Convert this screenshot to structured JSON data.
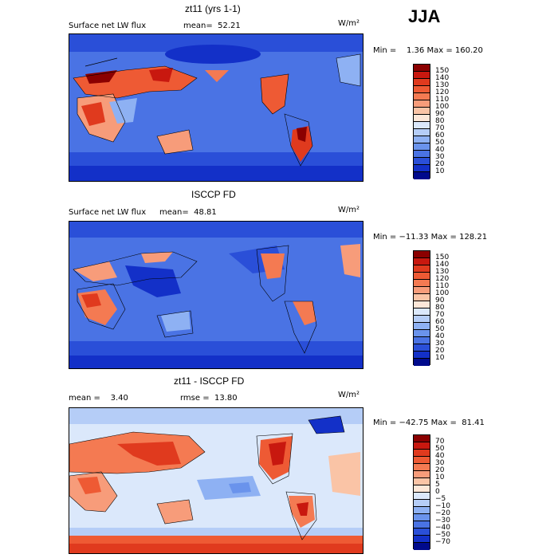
{
  "season": "JJA",
  "units": "W/m²",
  "panels": [
    {
      "title": "zt11 (yrs 1-1)",
      "left_label": "Surface net LW flux",
      "stat_label": "mean=  52.21",
      "minmax": "Min =    1.36 Max = 160.20",
      "levels": [
        "150",
        "140",
        "130",
        "120",
        "110",
        "100",
        "90",
        "80",
        "70",
        "60",
        "50",
        "40",
        "30",
        "20",
        "10"
      ],
      "colors": [
        "#8b0000",
        "#c8180f",
        "#e03a1e",
        "#ee5a34",
        "#f47a52",
        "#f79c7a",
        "#fac4a6",
        "#fde7d8",
        "#dbe8fb",
        "#b5cdf7",
        "#8eb1f3",
        "#6a93ec",
        "#4a73e4",
        "#2a4fd8",
        "#1330c8",
        "#000a8c"
      ]
    },
    {
      "title": "ISCCP FD",
      "left_label": "Surface net LW flux",
      "stat_label": "mean=  48.81",
      "minmax": "Min = −11.33 Max = 128.21",
      "levels": [
        "150",
        "140",
        "130",
        "120",
        "110",
        "100",
        "90",
        "80",
        "70",
        "60",
        "50",
        "40",
        "30",
        "20",
        "10"
      ],
      "colors": [
        "#8b0000",
        "#c8180f",
        "#e03a1e",
        "#ee5a34",
        "#f47a52",
        "#f79c7a",
        "#fac4a6",
        "#fde7d8",
        "#dbe8fb",
        "#b5cdf7",
        "#8eb1f3",
        "#6a93ec",
        "#4a73e4",
        "#2a4fd8",
        "#1330c8",
        "#000a8c"
      ]
    },
    {
      "title": "zt11 - ISCCP FD",
      "left_label": "mean =    3.40",
      "stat_label": "rmse =  13.80",
      "minmax": "Min = −42.75 Max =  81.41",
      "levels": [
        "70",
        "50",
        "40",
        "30",
        "20",
        "10",
        "5",
        "0",
        "−5",
        "−10",
        "−20",
        "−30",
        "−40",
        "−50",
        "−70"
      ],
      "colors": [
        "#8b0000",
        "#c8180f",
        "#e03a1e",
        "#ee5a34",
        "#f47a52",
        "#f79c7a",
        "#fac4a6",
        "#fde7d8",
        "#dbe8fb",
        "#b5cdf7",
        "#8eb1f3",
        "#6a93ec",
        "#4a73e4",
        "#2a4fd8",
        "#1330c8",
        "#000a8c"
      ]
    }
  ]
}
